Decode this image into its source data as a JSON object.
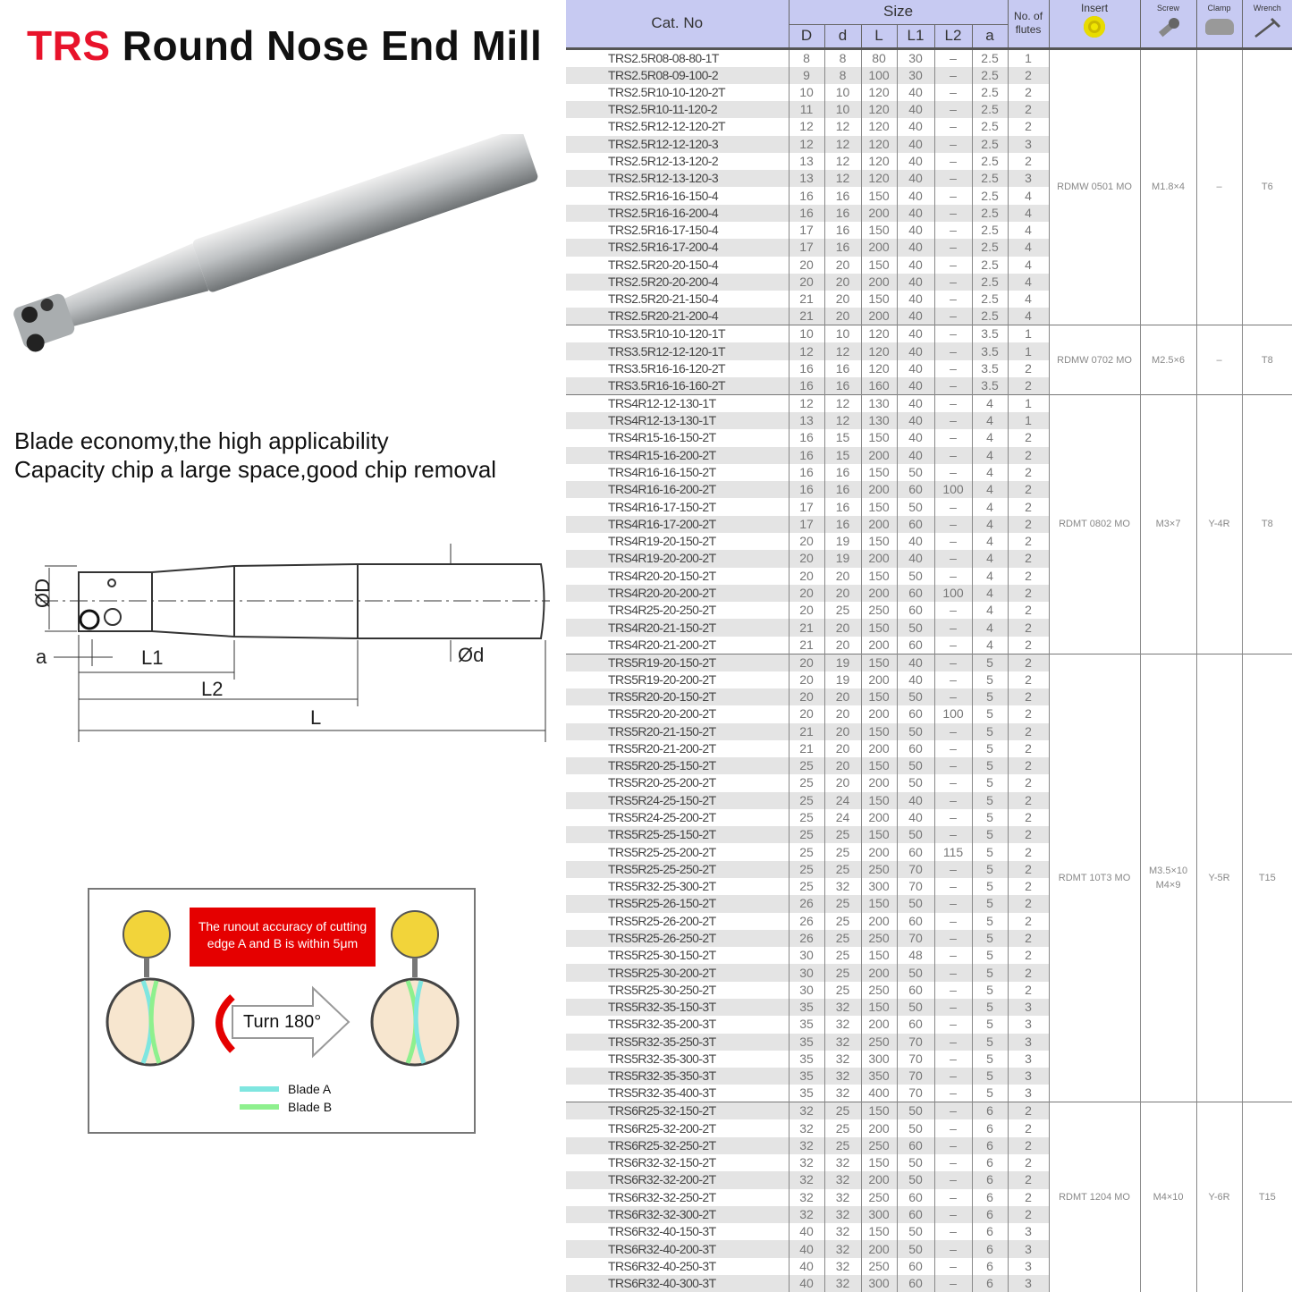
{
  "title": {
    "brand": "TRS",
    "rest": "Round Nose End Mill"
  },
  "features": [
    "Blade economy,the high applicability",
    "Capacity chip a large space,good chip removal"
  ],
  "diagram_labels": {
    "D": "ØD",
    "d": "Ød",
    "a": "a",
    "L1": "L1",
    "L2": "L2",
    "L": "L"
  },
  "runout": {
    "note": "The runout accuracy of cutting edge A and B is within 5μm",
    "turn": "Turn 180°",
    "blade_a": "Blade A",
    "blade_b": "Blade B",
    "blade_a_color": "#7fe6e0",
    "blade_b_color": "#8ef08e"
  },
  "table": {
    "headers": {
      "cat": "Cat. No",
      "size": "Size",
      "D": "D",
      "d": "d",
      "L": "L",
      "L1": "L1",
      "L2": "L2",
      "a": "a",
      "flutes": "No. of flutes",
      "insert": "Insert",
      "screw": "Screw",
      "clamp": "Clamp",
      "wrench": "Wrench"
    },
    "header_color": "#c7caf2",
    "groups": [
      {
        "insert": "RDMW 0501 MO",
        "screw": "M1.8×4",
        "clamp": "–",
        "wrench": "T6",
        "rows": [
          [
            "TRS2.5R08-08-80-1T",
            "8",
            "8",
            "80",
            "30",
            "–",
            "2.5",
            "1"
          ],
          [
            "TRS2.5R08-09-100-2",
            "9",
            "8",
            "100",
            "30",
            "–",
            "2.5",
            "2"
          ],
          [
            "TRS2.5R10-10-120-2T",
            "10",
            "10",
            "120",
            "40",
            "–",
            "2.5",
            "2"
          ],
          [
            "TRS2.5R10-11-120-2",
            "11",
            "10",
            "120",
            "40",
            "–",
            "2.5",
            "2"
          ],
          [
            "TRS2.5R12-12-120-2T",
            "12",
            "12",
            "120",
            "40",
            "–",
            "2.5",
            "2"
          ],
          [
            "TRS2.5R12-12-120-3",
            "12",
            "12",
            "120",
            "40",
            "–",
            "2.5",
            "3"
          ],
          [
            "TRS2.5R12-13-120-2",
            "13",
            "12",
            "120",
            "40",
            "–",
            "2.5",
            "2"
          ],
          [
            "TRS2.5R12-13-120-3",
            "13",
            "12",
            "120",
            "40",
            "–",
            "2.5",
            "3"
          ],
          [
            "TRS2.5R16-16-150-4",
            "16",
            "16",
            "150",
            "40",
            "–",
            "2.5",
            "4"
          ],
          [
            "TRS2.5R16-16-200-4",
            "16",
            "16",
            "200",
            "40",
            "–",
            "2.5",
            "4"
          ],
          [
            "TRS2.5R16-17-150-4",
            "17",
            "16",
            "150",
            "40",
            "–",
            "2.5",
            "4"
          ],
          [
            "TRS2.5R16-17-200-4",
            "17",
            "16",
            "200",
            "40",
            "–",
            "2.5",
            "4"
          ],
          [
            "TRS2.5R20-20-150-4",
            "20",
            "20",
            "150",
            "40",
            "–",
            "2.5",
            "4"
          ],
          [
            "TRS2.5R20-20-200-4",
            "20",
            "20",
            "200",
            "40",
            "–",
            "2.5",
            "4"
          ],
          [
            "TRS2.5R20-21-150-4",
            "21",
            "20",
            "150",
            "40",
            "–",
            "2.5",
            "4"
          ],
          [
            "TRS2.5R20-21-200-4",
            "21",
            "20",
            "200",
            "40",
            "–",
            "2.5",
            "4"
          ]
        ]
      },
      {
        "insert": "RDMW 0702 MO",
        "screw": "M2.5×6",
        "clamp": "–",
        "wrench": "T8",
        "rows": [
          [
            "TRS3.5R10-10-120-1T",
            "10",
            "10",
            "120",
            "40",
            "–",
            "3.5",
            "1"
          ],
          [
            "TRS3.5R12-12-120-1T",
            "12",
            "12",
            "120",
            "40",
            "–",
            "3.5",
            "1"
          ],
          [
            "TRS3.5R16-16-120-2T",
            "16",
            "16",
            "120",
            "40",
            "–",
            "3.5",
            "2"
          ],
          [
            "TRS3.5R16-16-160-2T",
            "16",
            "16",
            "160",
            "40",
            "–",
            "3.5",
            "2"
          ]
        ]
      },
      {
        "insert": "RDMT 0802 MO",
        "screw": "M3×7",
        "clamp": "Y-4R",
        "wrench": "T8",
        "rows": [
          [
            "TRS4R12-12-130-1T",
            "12",
            "12",
            "130",
            "40",
            "–",
            "4",
            "1"
          ],
          [
            "TRS4R12-13-130-1T",
            "13",
            "12",
            "130",
            "40",
            "–",
            "4",
            "1"
          ],
          [
            "TRS4R15-16-150-2T",
            "16",
            "15",
            "150",
            "40",
            "–",
            "4",
            "2"
          ],
          [
            "TRS4R15-16-200-2T",
            "16",
            "15",
            "200",
            "40",
            "–",
            "4",
            "2"
          ],
          [
            "TRS4R16-16-150-2T",
            "16",
            "16",
            "150",
            "50",
            "–",
            "4",
            "2"
          ],
          [
            "TRS4R16-16-200-2T",
            "16",
            "16",
            "200",
            "60",
            "100",
            "4",
            "2"
          ],
          [
            "TRS4R16-17-150-2T",
            "17",
            "16",
            "150",
            "50",
            "–",
            "4",
            "2"
          ],
          [
            "TRS4R16-17-200-2T",
            "17",
            "16",
            "200",
            "60",
            "–",
            "4",
            "2"
          ],
          [
            "TRS4R19-20-150-2T",
            "20",
            "19",
            "150",
            "40",
            "–",
            "4",
            "2"
          ],
          [
            "TRS4R19-20-200-2T",
            "20",
            "19",
            "200",
            "40",
            "–",
            "4",
            "2"
          ],
          [
            "TRS4R20-20-150-2T",
            "20",
            "20",
            "150",
            "50",
            "–",
            "4",
            "2"
          ],
          [
            "TRS4R20-20-200-2T",
            "20",
            "20",
            "200",
            "60",
            "100",
            "4",
            "2"
          ],
          [
            "TRS4R25-20-250-2T",
            "20",
            "25",
            "250",
            "60",
            "–",
            "4",
            "2"
          ],
          [
            "TRS4R20-21-150-2T",
            "21",
            "20",
            "150",
            "50",
            "–",
            "4",
            "2"
          ],
          [
            "TRS4R20-21-200-2T",
            "21",
            "20",
            "200",
            "60",
            "–",
            "4",
            "2"
          ]
        ]
      },
      {
        "insert": "RDMT 10T3 MO",
        "screw": "M3.5×10 M4×9",
        "clamp": "Y-5R",
        "wrench": "T15",
        "rows": [
          [
            "TRS5R19-20-150-2T",
            "20",
            "19",
            "150",
            "40",
            "–",
            "5",
            "2"
          ],
          [
            "TRS5R19-20-200-2T",
            "20",
            "19",
            "200",
            "40",
            "–",
            "5",
            "2"
          ],
          [
            "TRS5R20-20-150-2T",
            "20",
            "20",
            "150",
            "50",
            "–",
            "5",
            "2"
          ],
          [
            "TRS5R20-20-200-2T",
            "20",
            "20",
            "200",
            "60",
            "100",
            "5",
            "2"
          ],
          [
            "TRS5R20-21-150-2T",
            "21",
            "20",
            "150",
            "50",
            "–",
            "5",
            "2"
          ],
          [
            "TRS5R20-21-200-2T",
            "21",
            "20",
            "200",
            "60",
            "–",
            "5",
            "2"
          ],
          [
            "TRS5R20-25-150-2T",
            "25",
            "20",
            "150",
            "50",
            "–",
            "5",
            "2"
          ],
          [
            "TRS5R20-25-200-2T",
            "25",
            "20",
            "200",
            "50",
            "–",
            "5",
            "2"
          ],
          [
            "TRS5R24-25-150-2T",
            "25",
            "24",
            "150",
            "40",
            "–",
            "5",
            "2"
          ],
          [
            "TRS5R24-25-200-2T",
            "25",
            "24",
            "200",
            "40",
            "–",
            "5",
            "2"
          ],
          [
            "TRS5R25-25-150-2T",
            "25",
            "25",
            "150",
            "50",
            "–",
            "5",
            "2"
          ],
          [
            "TRS5R25-25-200-2T",
            "25",
            "25",
            "200",
            "60",
            "115",
            "5",
            "2"
          ],
          [
            "TRS5R25-25-250-2T",
            "25",
            "25",
            "250",
            "70",
            "–",
            "5",
            "2"
          ],
          [
            "TRS5R32-25-300-2T",
            "25",
            "32",
            "300",
            "70",
            "–",
            "5",
            "2"
          ],
          [
            "TRS5R25-26-150-2T",
            "26",
            "25",
            "150",
            "50",
            "–",
            "5",
            "2"
          ],
          [
            "TRS5R25-26-200-2T",
            "26",
            "25",
            "200",
            "60",
            "–",
            "5",
            "2"
          ],
          [
            "TRS5R25-26-250-2T",
            "26",
            "25",
            "250",
            "70",
            "–",
            "5",
            "2"
          ],
          [
            "TRS5R25-30-150-2T",
            "30",
            "25",
            "150",
            "48",
            "–",
            "5",
            "2"
          ],
          [
            "TRS5R25-30-200-2T",
            "30",
            "25",
            "200",
            "50",
            "–",
            "5",
            "2"
          ],
          [
            "TRS5R25-30-250-2T",
            "30",
            "25",
            "250",
            "60",
            "–",
            "5",
            "2"
          ],
          [
            "TRS5R32-35-150-3T",
            "35",
            "32",
            "150",
            "50",
            "–",
            "5",
            "3"
          ],
          [
            "TRS5R32-35-200-3T",
            "35",
            "32",
            "200",
            "60",
            "–",
            "5",
            "3"
          ],
          [
            "TRS5R32-35-250-3T",
            "35",
            "32",
            "250",
            "70",
            "–",
            "5",
            "3"
          ],
          [
            "TRS5R32-35-300-3T",
            "35",
            "32",
            "300",
            "70",
            "–",
            "5",
            "3"
          ],
          [
            "TRS5R32-35-350-3T",
            "35",
            "32",
            "350",
            "70",
            "–",
            "5",
            "3"
          ],
          [
            "TRS5R32-35-400-3T",
            "35",
            "32",
            "400",
            "70",
            "–",
            "5",
            "3"
          ]
        ]
      },
      {
        "insert": "RDMT 1204 MO",
        "screw": "M4×10",
        "clamp": "Y-6R",
        "wrench": "T15",
        "rows": [
          [
            "TRS6R25-32-150-2T",
            "32",
            "25",
            "150",
            "50",
            "–",
            "6",
            "2"
          ],
          [
            "TRS6R25-32-200-2T",
            "32",
            "25",
            "200",
            "50",
            "–",
            "6",
            "2"
          ],
          [
            "TRS6R25-32-250-2T",
            "32",
            "25",
            "250",
            "60",
            "–",
            "6",
            "2"
          ],
          [
            "TRS6R32-32-150-2T",
            "32",
            "32",
            "150",
            "50",
            "–",
            "6",
            "2"
          ],
          [
            "TRS6R32-32-200-2T",
            "32",
            "32",
            "200",
            "50",
            "–",
            "6",
            "2"
          ],
          [
            "TRS6R32-32-250-2T",
            "32",
            "32",
            "250",
            "60",
            "–",
            "6",
            "2"
          ],
          [
            "TRS6R32-32-300-2T",
            "32",
            "32",
            "300",
            "60",
            "–",
            "6",
            "2"
          ],
          [
            "TRS6R32-40-150-3T",
            "40",
            "32",
            "150",
            "50",
            "–",
            "6",
            "3"
          ],
          [
            "TRS6R32-40-200-3T",
            "40",
            "32",
            "200",
            "50",
            "–",
            "6",
            "3"
          ],
          [
            "TRS6R32-40-250-3T",
            "40",
            "32",
            "250",
            "60",
            "–",
            "6",
            "3"
          ],
          [
            "TRS6R32-40-300-3T",
            "40",
            "32",
            "300",
            "60",
            "–",
            "6",
            "3"
          ]
        ]
      }
    ]
  }
}
